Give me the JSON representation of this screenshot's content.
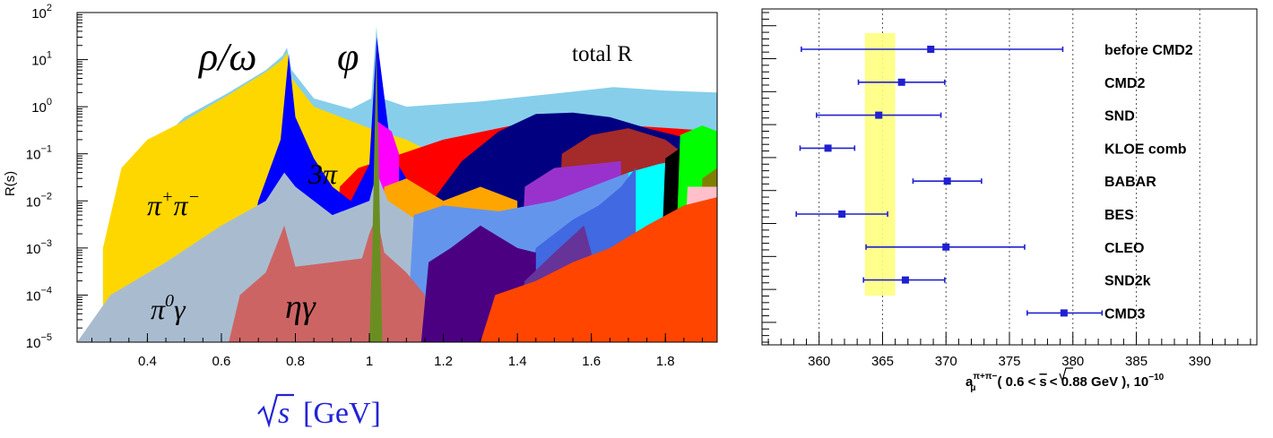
{
  "chart_data": [
    {
      "type": "area",
      "title": "",
      "xlabel_base": "s",
      "xlabel_unit": "[GeV]",
      "ylabel": "R(s)",
      "yscale": "log",
      "xlim": [
        0.21,
        1.94
      ],
      "ylim": [
        1e-05,
        100
      ],
      "x_ticks": [
        "0.4",
        "0.6",
        "0.8",
        "1",
        "1.2",
        "1.4",
        "1.6",
        "1.8"
      ],
      "x_tick_values": [
        0.4,
        0.6,
        0.8,
        1.0,
        1.2,
        1.4,
        1.6,
        1.8
      ],
      "y_ticks": [
        {
          "base": "10",
          "exp": "2",
          "value": 100
        },
        {
          "base": "10",
          "exp": "1",
          "value": 10
        },
        {
          "base": "10",
          "exp": "0",
          "value": 1
        },
        {
          "base": "10",
          "exp": "−1",
          "value": 0.1
        },
        {
          "base": "10",
          "exp": "−2",
          "value": 0.01
        },
        {
          "base": "10",
          "exp": "−3",
          "value": 0.001
        },
        {
          "base": "10",
          "exp": "−4",
          "value": 0.0001
        },
        {
          "base": "10",
          "exp": "−5",
          "value": 1e-05
        }
      ],
      "annotations": {
        "rho_omega": "ρ/ω",
        "phi": "φ",
        "total": "total R",
        "three_pi": "3π",
        "pipi_base": "π",
        "pipi_sup1": "+",
        "pipi_mid": "π",
        "pipi_sup2": "−",
        "pi0g_base": "π",
        "pi0g_sup": "0",
        "pi0g_end": "γ",
        "etag": "ηγ"
      },
      "colors": {
        "total": "#87ceeb",
        "pipi": "#ffd700",
        "threepi": "#0000ff",
        "pi0gamma": "#a9bccf",
        "etagamma": "#cd6464",
        "phi_peak": "#6b8e23",
        "red": "#ff0000",
        "navy": "#000080",
        "orange": "#ffa500",
        "purple": "#9932cc",
        "cornflower": "#6495ed",
        "royal": "#4169e1",
        "indigo": "#4b0082",
        "darkpurple": "#663399",
        "orangered": "#ff4500",
        "brown": "#a52a2a",
        "cyan": "#00ffff",
        "black": "#000000",
        "green": "#00ff00",
        "magenta": "#ff00ff",
        "olive": "#808000",
        "pink": "#ffc0cb"
      }
    },
    {
      "type": "scatter",
      "title": "",
      "xlabel_a": "a",
      "xlabel_a_sup": "π+π−",
      "xlabel_a_sub": "μ",
      "xlabel_range_pre": "( 0.6 <",
      "xlabel_range_s": "s",
      "xlabel_range_post": "< 0.88 GeV ), 10",
      "xlabel_exp": "−10",
      "xlim": [
        355.5,
        394.5
      ],
      "x_ticks": [
        "360",
        "365",
        "370",
        "375",
        "380",
        "385",
        "390"
      ],
      "x_tick_values": [
        360,
        365,
        370,
        375,
        380,
        385,
        390
      ],
      "band": [
        363.6,
        366.0
      ],
      "band_color": "#ffff80",
      "point_color": "#2020d0",
      "points": [
        {
          "name": "before CMD2",
          "value": 368.8,
          "low": 358.6,
          "high": 379.2
        },
        {
          "name": "CMD2",
          "value": 366.5,
          "low": 363.1,
          "high": 369.9
        },
        {
          "name": "SND",
          "value": 364.7,
          "low": 359.8,
          "high": 369.6
        },
        {
          "name": "KLOE comb",
          "value": 360.7,
          "low": 358.5,
          "high": 362.8
        },
        {
          "name": "BABAR",
          "value": 370.1,
          "low": 367.4,
          "high": 372.8
        },
        {
          "name": "BES",
          "value": 361.8,
          "low": 358.2,
          "high": 365.4
        },
        {
          "name": "CLEO",
          "value": 370.0,
          "low": 363.7,
          "high": 376.2
        },
        {
          "name": "SND2k",
          "value": 366.8,
          "low": 363.5,
          "high": 369.9
        },
        {
          "name": "CMD3",
          "value": 379.3,
          "low": 376.4,
          "high": 382.3
        }
      ]
    }
  ]
}
